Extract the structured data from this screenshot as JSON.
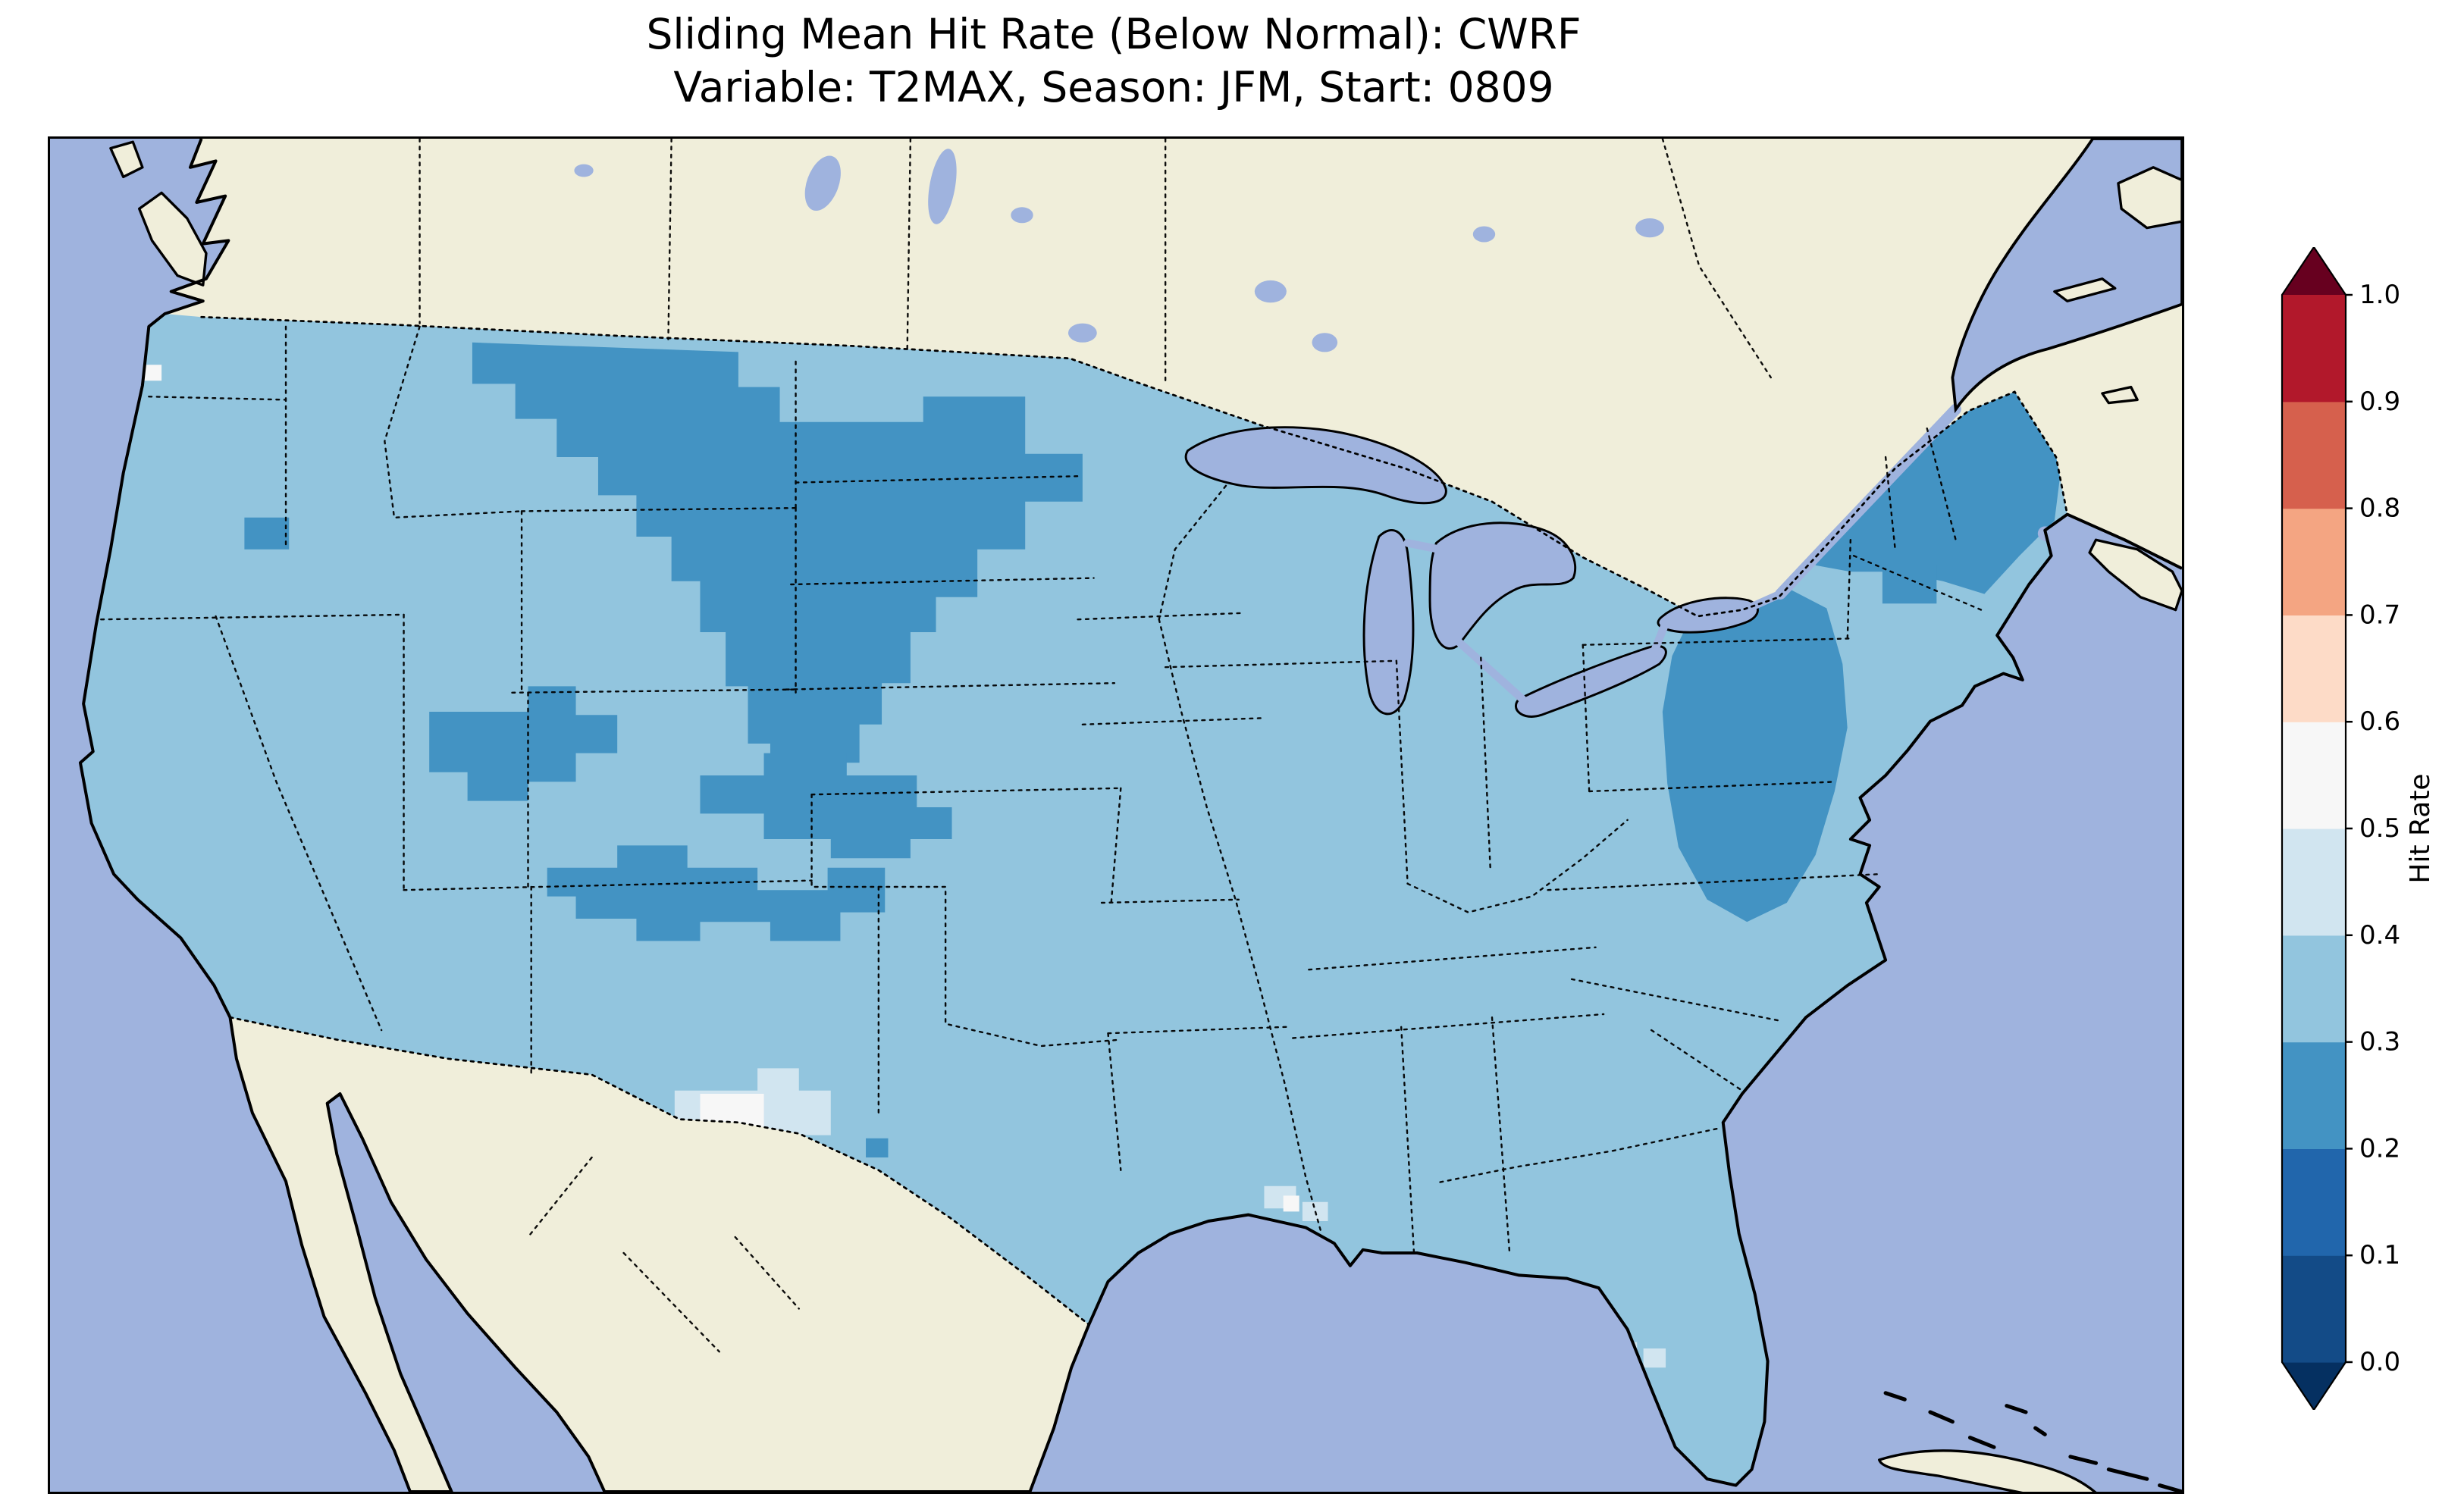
{
  "figure": {
    "title_line1": "Sliding Mean Hit Rate (Below Normal): CWRF",
    "title_line2": "Variable: T2MAX, Season: JFM, Start: 0809"
  },
  "colorbar": {
    "label": "Hit Rate",
    "ticks": [
      "0.0",
      "0.1",
      "0.2",
      "0.3",
      "0.4",
      "0.5",
      "0.6",
      "0.7",
      "0.8",
      "0.9",
      "1.0"
    ],
    "segments_bottom_to_top": [
      {
        "range": "0.0-0.1",
        "color": "#134b87"
      },
      {
        "range": "0.1-0.2",
        "color": "#2166ac"
      },
      {
        "range": "0.2-0.3",
        "color": "#4393c3"
      },
      {
        "range": "0.3-0.4",
        "color": "#92c5de"
      },
      {
        "range": "0.4-0.5",
        "color": "#d1e5f0"
      },
      {
        "range": "0.5-0.6",
        "color": "#f7f7f7"
      },
      {
        "range": "0.6-0.7",
        "color": "#fddbc7"
      },
      {
        "range": "0.7-0.8",
        "color": "#f4a582"
      },
      {
        "range": "0.8-0.9",
        "color": "#d6604d"
      },
      {
        "range": "0.9-1.0",
        "color": "#b2182b"
      }
    ],
    "under_color": "#053061",
    "over_color": "#67001f",
    "extend": "both"
  },
  "map": {
    "colors": {
      "ocean": "#9fb3de",
      "land": "#f0eeda",
      "coast": "#000000",
      "bin_0_2_to_0_3": "#4393c3",
      "bin_0_3_to_0_4": "#92c5de",
      "bin_0_4_to_0_5": "#d1e5f0",
      "bin_0_5_to_0_6": "#f7f7f7"
    },
    "border_style": "dotted black state and national borders, solid black coastlines"
  },
  "chart_data": {
    "type": "heatmap",
    "title": "Sliding Mean Hit Rate (Below Normal): CWRF",
    "subtitle": "Variable: T2MAX, Season: JFM, Start: 0809",
    "model": "CWRF",
    "variable": "T2MAX",
    "season": "JFM",
    "start": "0809",
    "metric": "Hit Rate",
    "category": "Below Normal",
    "colorbar": {
      "label": "Hit Rate",
      "ticks": [
        0.0,
        0.1,
        0.2,
        0.3,
        0.4,
        0.5,
        0.6,
        0.7,
        0.8,
        0.9,
        1.0
      ],
      "range": [
        0.0,
        1.0
      ],
      "bins": 10,
      "colormap": "discrete red-blue (RdBu_r style), extend both ends",
      "legend_position": "right"
    },
    "map_extent": "Continental United States with surrounding Canada, Mexico, Gulf of Mexico, Pacific and Atlantic oceans",
    "observed_values": {
      "dominant_bin": "0.3-0.4 hit rate over most of the contiguous United States",
      "regions": [
        {
          "region": "eastern Montana through western Dakotas into Nebraska panhandle",
          "hit_rate_bin": "0.2-0.3"
        },
        {
          "region": "eastern North Dakota",
          "hit_rate_bin": "0.2-0.3"
        },
        {
          "region": "small spot southern Idaho / northern Nevada",
          "hit_rate_bin": "0.2-0.3"
        },
        {
          "region": "northeastern Utah into northwestern Colorado",
          "hit_rate_bin": "0.2-0.3"
        },
        {
          "region": "central Colorado mountains",
          "hit_rate_bin": "0.2-0.3"
        },
        {
          "region": "southern Utah / southwestern Colorado into northern Arizona and New Mexico",
          "hit_rate_bin": "0.2-0.3"
        },
        {
          "region": "New England (Maine, New Hampshire, Vermont, upstate New York)",
          "hit_rate_bin": "0.2-0.3"
        },
        {
          "region": "Mid-Atlantic coast (Delmarva, eastern Virginia, eastern North Carolina)",
          "hit_rate_bin": "0.2-0.3"
        },
        {
          "region": "west Texas patch",
          "hit_rate_bin": "0.4-0.5 with small 0.5-0.6 core"
        },
        {
          "region": "south Texas near the border",
          "hit_rate_bin": "0.4-0.5 with small 0.5-0.6 core"
        },
        {
          "region": "Louisiana coast spots",
          "hit_rate_bin": "0.4-0.5 with small 0.5-0.6 cell"
        },
        {
          "region": "tiny cell on Washington coast",
          "hit_rate_bin": "0.5-0.6"
        },
        {
          "region": "two small cells near south Florida",
          "hit_rate_bin": "0.4-0.5"
        }
      ],
      "no_data": "Canada and Mexico shown as beige land with no hit-rate shading"
    }
  }
}
